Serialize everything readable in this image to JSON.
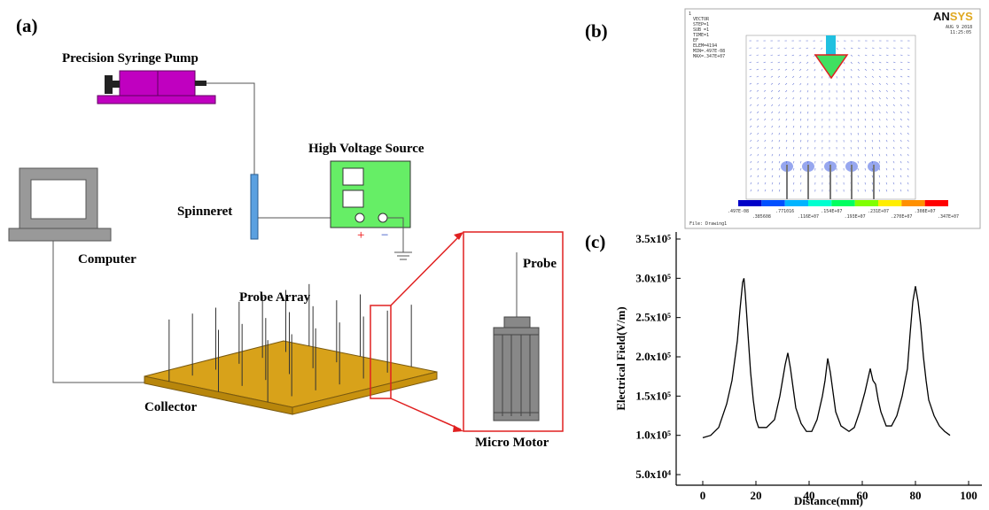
{
  "panel_a": {
    "label": "(a)",
    "pump": "Precision Syringe Pump",
    "hv_source": "High Voltage Source",
    "spinneret": "Spinneret",
    "computer": "Computer",
    "probe_array": "Probe Array",
    "collector": "Collector",
    "probe": "Probe",
    "micro_motor": "Micro Motor",
    "plus": "+",
    "minus": "−"
  },
  "panel_b": {
    "label": "(b)",
    "corner": "1",
    "info": [
      "VECTOR",
      "STEP=1",
      "SUB =1",
      "TIME=1",
      "EF",
      "ELEM=4194",
      "MIN=.497E-08",
      "MAX=.347E+07"
    ],
    "logo_parts": [
      "AN",
      "SYS"
    ],
    "date": "AUG  9 2018",
    "time": "11:25:05",
    "colorbar_labels": [
      ".497E-08",
      ".385608",
      ".771016",
      ".116E+07",
      ".154E+07",
      ".193E+07",
      ".231E+07",
      ".270E+07",
      ".308E+07",
      ".347E+07"
    ],
    "file": "File: Drawing1"
  },
  "chart_data": {
    "type": "line",
    "panel_label": "(c)",
    "x_label": "Distance(mm)",
    "y_label": "Electrical Field(V/m)",
    "color": "#000000",
    "x": [
      0,
      3,
      6,
      9,
      11,
      13,
      14,
      15,
      15.5,
      16,
      17,
      18,
      19,
      20,
      21,
      24,
      27,
      29,
      30,
      31,
      32,
      33,
      34,
      35,
      37,
      39,
      41,
      43,
      45,
      46,
      47,
      48,
      49,
      50,
      52,
      55,
      57,
      59,
      61,
      62,
      63,
      64,
      65,
      66,
      67,
      69,
      71,
      73,
      75,
      77,
      78,
      79,
      80,
      81,
      82,
      83,
      84,
      85,
      87,
      89,
      91,
      93
    ],
    "values": [
      97000,
      100000,
      110000,
      140000,
      170000,
      220000,
      260000,
      295000,
      300000,
      280000,
      230000,
      180000,
      145000,
      120000,
      110000,
      110000,
      120000,
      150000,
      170000,
      190000,
      205000,
      185000,
      160000,
      135000,
      115000,
      105000,
      105000,
      120000,
      150000,
      170000,
      198000,
      180000,
      155000,
      130000,
      112000,
      105000,
      110000,
      130000,
      155000,
      170000,
      185000,
      170000,
      165000,
      145000,
      130000,
      112000,
      112000,
      125000,
      150000,
      185000,
      230000,
      270000,
      290000,
      270000,
      240000,
      200000,
      170000,
      145000,
      125000,
      112000,
      105000,
      100000
    ],
    "xlim": [
      -10,
      105
    ],
    "ylim": [
      36500,
      359000
    ],
    "xticks": [
      0,
      20,
      40,
      60,
      80,
      100
    ],
    "yticks": [
      {
        "value": 50000,
        "label": "5.0x10⁴"
      },
      {
        "value": 100000,
        "label": "1.0x10⁵"
      },
      {
        "value": 150000,
        "label": "1.5x10⁵"
      },
      {
        "value": 200000,
        "label": "2.0x10⁵"
      },
      {
        "value": 250000,
        "label": "2.5x10⁵"
      },
      {
        "value": 300000,
        "label": "3.0x10⁵"
      },
      {
        "value": 350000,
        "label": "3.5x10⁵"
      }
    ]
  }
}
